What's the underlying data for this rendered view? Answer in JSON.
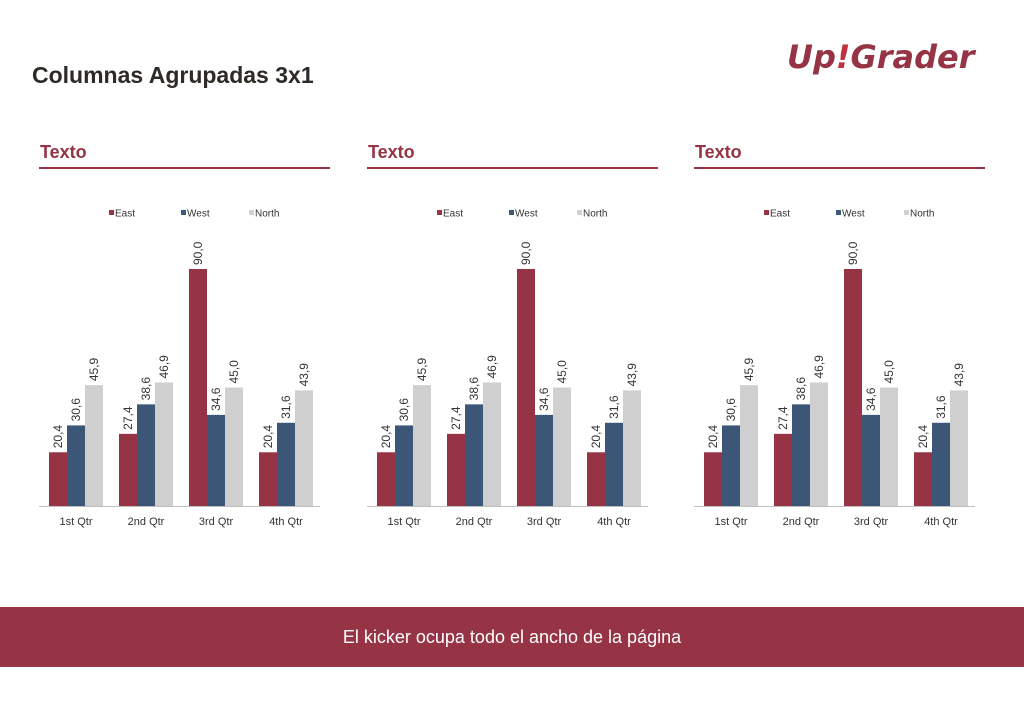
{
  "page": {
    "title": "Columnas Agrupadas 3x1"
  },
  "logo": {
    "text_left": "Up",
    "text_bang": "!",
    "text_right": "Grader"
  },
  "kicker": {
    "text": "El kicker ocupa todo el ancho de la página"
  },
  "colors": {
    "accent": "#963446",
    "east": "#963446",
    "west": "#3b5676",
    "north": "#cfcfcf"
  },
  "panels": [
    {
      "title": "Texto"
    },
    {
      "title": "Texto"
    },
    {
      "title": "Texto"
    }
  ],
  "chart_data": [
    {
      "type": "bar",
      "categories": [
        "1st Qtr",
        "2nd Qtr",
        "3rd Qtr",
        "4th Qtr"
      ],
      "series": [
        {
          "name": "East",
          "values": [
            20.4,
            27.4,
            90.0,
            20.4
          ],
          "labels": [
            "20,4",
            "27,4",
            "90,0",
            "20,4"
          ]
        },
        {
          "name": "West",
          "values": [
            30.6,
            38.6,
            34.6,
            31.6
          ],
          "labels": [
            "30,6",
            "38,6",
            "34,6",
            "31,6"
          ]
        },
        {
          "name": "North",
          "values": [
            45.9,
            46.9,
            45.0,
            43.9
          ],
          "labels": [
            "45,9",
            "46,9",
            "45,0",
            "43,9"
          ]
        }
      ],
      "legend": "top",
      "grid": false
    },
    {
      "type": "bar",
      "categories": [
        "1st Qtr",
        "2nd Qtr",
        "3rd Qtr",
        "4th Qtr"
      ],
      "series": [
        {
          "name": "East",
          "values": [
            20.4,
            27.4,
            90.0,
            20.4
          ],
          "labels": [
            "20,4",
            "27,4",
            "90,0",
            "20,4"
          ]
        },
        {
          "name": "West",
          "values": [
            30.6,
            38.6,
            34.6,
            31.6
          ],
          "labels": [
            "30,6",
            "38,6",
            "34,6",
            "31,6"
          ]
        },
        {
          "name": "North",
          "values": [
            45.9,
            46.9,
            45.0,
            43.9
          ],
          "labels": [
            "45,9",
            "46,9",
            "45,0",
            "43,9"
          ]
        }
      ],
      "legend": "top",
      "grid": false
    },
    {
      "type": "bar",
      "categories": [
        "1st Qtr",
        "2nd Qtr",
        "3rd Qtr",
        "4th Qtr"
      ],
      "series": [
        {
          "name": "East",
          "values": [
            20.4,
            27.4,
            90.0,
            20.4
          ],
          "labels": [
            "20,4",
            "27,4",
            "90,0",
            "20,4"
          ]
        },
        {
          "name": "West",
          "values": [
            30.6,
            38.6,
            34.6,
            31.6
          ],
          "labels": [
            "30,6",
            "38,6",
            "34,6",
            "31,6"
          ]
        },
        {
          "name": "North",
          "values": [
            45.9,
            46.9,
            45.0,
            43.9
          ],
          "labels": [
            "45,9",
            "46,9",
            "45,0",
            "43,9"
          ]
        }
      ],
      "legend": "top",
      "grid": false
    }
  ]
}
